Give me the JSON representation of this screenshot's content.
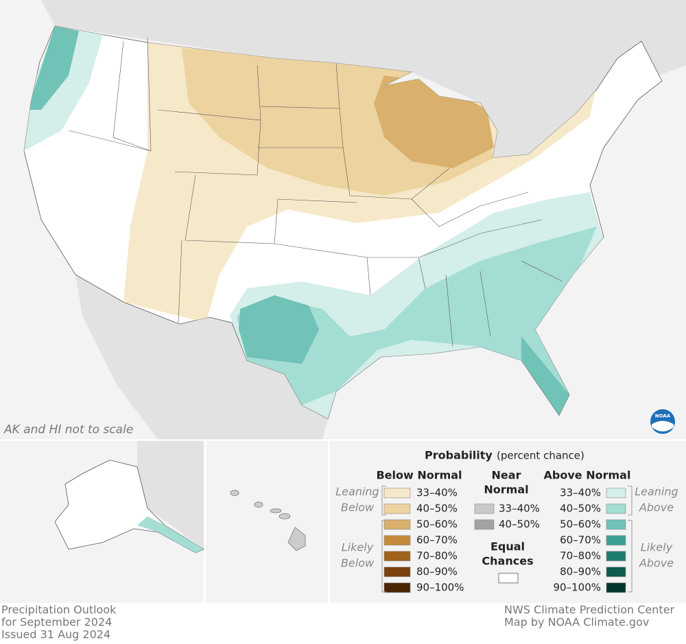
{
  "map_note": "AK and HI not to scale",
  "logo": "NOAA",
  "legend": {
    "title": "Probability",
    "title_note": "(percent chance)",
    "below": {
      "heading": "Below Normal",
      "leaning_label": [
        "Leaning",
        "Below"
      ],
      "likely_label": [
        "Likely",
        "Below"
      ],
      "items": [
        {
          "label": "33–40%",
          "color": "#f6e9c9"
        },
        {
          "label": "40–50%",
          "color": "#ecd3a0"
        },
        {
          "label": "50–60%",
          "color": "#d9b06c"
        },
        {
          "label": "60–70%",
          "color": "#c48b3c"
        },
        {
          "label": "70–80%",
          "color": "#a1621d"
        },
        {
          "label": "80–90%",
          "color": "#7b420f"
        },
        {
          "label": "90–100%",
          "color": "#4a2506"
        }
      ]
    },
    "near": {
      "heading": [
        "Near",
        "Normal"
      ],
      "items": [
        {
          "label": "33–40%",
          "color": "#c9c9c9"
        },
        {
          "label": "40–50%",
          "color": "#a3a3a3"
        }
      ]
    },
    "equal": {
      "heading": [
        "Equal",
        "Chances"
      ],
      "color": "#ffffff"
    },
    "above": {
      "heading": "Above Normal",
      "leaning_label": [
        "Leaning",
        "Above"
      ],
      "likely_label": [
        "Likely",
        "Above"
      ],
      "items": [
        {
          "label": "33–40%",
          "color": "#d4eeea"
        },
        {
          "label": "40–50%",
          "color": "#a4ddd4"
        },
        {
          "label": "50–60%",
          "color": "#70c3b6"
        },
        {
          "label": "60–70%",
          "color": "#3d9f92"
        },
        {
          "label": "70–80%",
          "color": "#1f7d70"
        },
        {
          "label": "80–90%",
          "color": "#0d5a4e"
        },
        {
          "label": "90–100%",
          "color": "#03372e"
        }
      ]
    }
  },
  "footer": {
    "left": [
      "Precipitation Outlook",
      "for September 2024",
      "Issued 31 Aug 2024"
    ],
    "right": [
      "NWS Climate Prediction Center",
      "Map by NOAA Climate.gov"
    ]
  }
}
